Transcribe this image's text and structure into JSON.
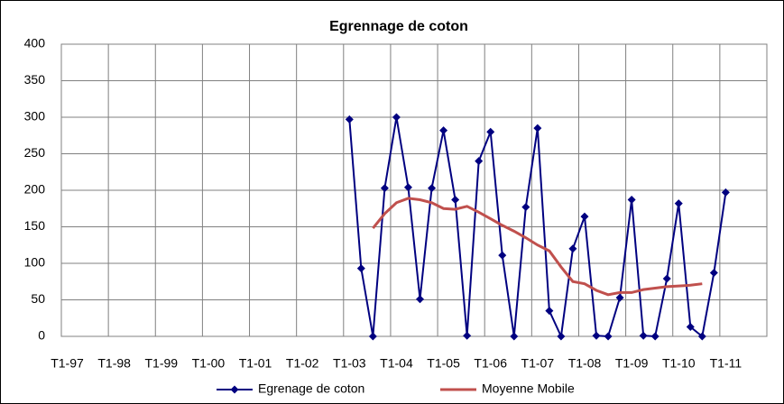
{
  "chart_data": {
    "type": "line",
    "title": "Egrennage de coton",
    "categories": [
      "T1-97",
      null,
      null,
      null,
      "T1-98",
      null,
      null,
      null,
      "T1-99",
      null,
      null,
      null,
      "T1-00",
      null,
      null,
      null,
      "T1-01",
      null,
      null,
      null,
      "T1-02",
      null,
      null,
      null,
      "T1-03",
      null,
      null,
      null,
      "T1-04",
      null,
      null,
      null,
      "T1-05",
      null,
      null,
      null,
      "T1-06",
      null,
      null,
      null,
      "T1-07",
      null,
      null,
      null,
      "T1-08",
      null,
      null,
      null,
      "T1-09",
      null,
      null,
      null,
      "T1-10",
      null,
      null,
      null,
      "T1-11",
      null,
      null,
      null
    ],
    "series": [
      {
        "name": "Egrenage de coton",
        "color": "#000080",
        "marker": "diamond",
        "values": [
          null,
          null,
          null,
          null,
          null,
          null,
          null,
          null,
          null,
          null,
          null,
          null,
          null,
          null,
          null,
          null,
          null,
          null,
          null,
          null,
          null,
          null,
          null,
          null,
          297,
          93,
          0,
          203,
          300,
          204,
          51,
          203,
          282,
          187,
          1,
          240,
          280,
          111,
          0,
          177,
          285,
          35,
          0,
          120,
          164,
          1,
          0,
          53,
          187,
          1,
          0,
          79,
          182,
          13,
          0,
          87,
          197,
          null,
          null,
          null
        ]
      },
      {
        "name": "Moyenne Mobile",
        "color": "#c0504d",
        "values": [
          null,
          null,
          null,
          null,
          null,
          null,
          null,
          null,
          null,
          null,
          null,
          null,
          null,
          null,
          null,
          null,
          null,
          null,
          null,
          null,
          null,
          null,
          null,
          null,
          null,
          null,
          148,
          168,
          183,
          189,
          187,
          183,
          175,
          174,
          178,
          170,
          161,
          152,
          144,
          135,
          125,
          117,
          95,
          75,
          72,
          63,
          57,
          60,
          60,
          64,
          66,
          68,
          69,
          70,
          72,
          null,
          null,
          null,
          null,
          null
        ]
      }
    ],
    "ylim": [
      0,
      400
    ],
    "yticks": [
      0,
      50,
      100,
      150,
      200,
      250,
      300,
      350,
      400
    ],
    "grid": true,
    "legend": "bottom"
  }
}
